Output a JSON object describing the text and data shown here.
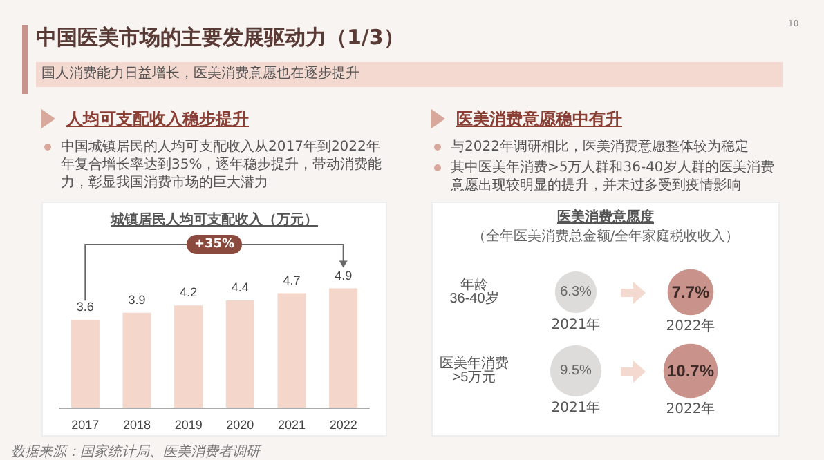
{
  "chart_data": [
    {
      "type": "other",
      "title": "中国医美市场的主要发展驱动力（1/3）",
      "subtitle": "国人消费能力日益增长，医美消费意愿也在逐步提升",
      "annotations": [
        "10",
        "数据来源：国家统计局、医美消费者调研"
      ]
    },
    {
      "type": "bar",
      "title": "城镇居民人均可支配收入（万元）",
      "categories": [
        "2017",
        "2018",
        "2019",
        "2020",
        "2021",
        "2022"
      ],
      "values": [
        3.6,
        3.9,
        4.2,
        4.4,
        4.7,
        4.9
      ],
      "color": "#f5d6ca",
      "data_labels": true,
      "annotations": [
        "人均可支配收入稳步提升",
        "中国城镇居民的人均可支配收入从2017年到2022年年复合增长率达到35%，逐年稳步提升，带动消费能力，彰显我国消费市场的巨大潜力",
        "+35%"
      ]
    },
    {
      "type": "other",
      "title": "医美消费意愿度",
      "subtitle": "（全年医美消费总金额/全年家庭税收收入）",
      "categories": [
        "年龄\n36-40岁",
        "医美年消费\n>5万元"
      ],
      "series": [
        {
          "name": "2021年",
          "color": "#dedcdb",
          "values": [
            6.3,
            9.5
          ],
          "value_labels": [
            "6.3%",
            "9.5%"
          ]
        },
        {
          "name": "2022年",
          "color": "#c9928a",
          "values": [
            7.7,
            10.7
          ],
          "value_labels": [
            "7.7%",
            "10.7%"
          ]
        }
      ],
      "annotations": [
        "医美消费意愿稳中有升",
        "与2022年调研相比，医美消费意愿整体较为稳定",
        "其中医美年消费>5万人群和36-40岁人群的医美消费意愿出现较明显的提升，并未过多受到疫情影响"
      ]
    }
  ]
}
